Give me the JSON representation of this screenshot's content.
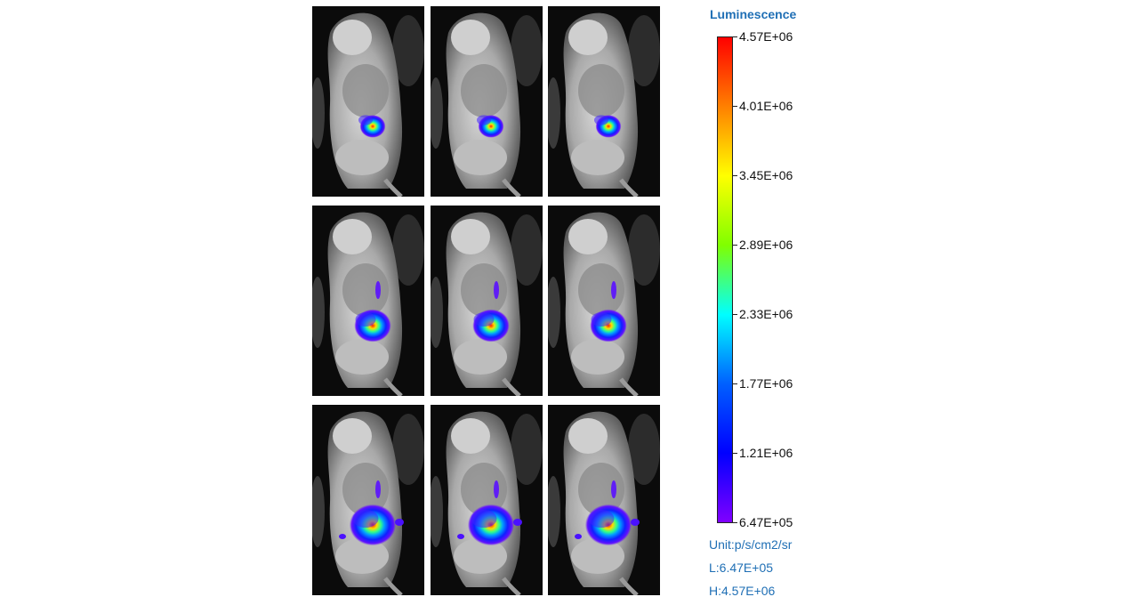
{
  "legend": {
    "title": "Luminescence",
    "title_color": "#1f6fb5",
    "ticks": [
      "4.57E+06",
      "4.01E+06",
      "3.45E+06",
      "2.89E+06",
      "2.33E+06",
      "1.77E+06",
      "1.21E+06",
      "6.47E+05"
    ],
    "unit": "Unit:p/s/cm2/sr",
    "low": "L:6.47E+05",
    "high": "H:4.57E+06",
    "info_color": "#1f6fb5",
    "gradient_colors": [
      "#ff0000",
      "#ff8000",
      "#ffff00",
      "#80ff00",
      "#00ffff",
      "#0060ff",
      "#0000ff",
      "#8000ff"
    ]
  },
  "images": {
    "rows": 3,
    "cols": 3,
    "description_icon": "mouse-bioluminescence-image"
  }
}
